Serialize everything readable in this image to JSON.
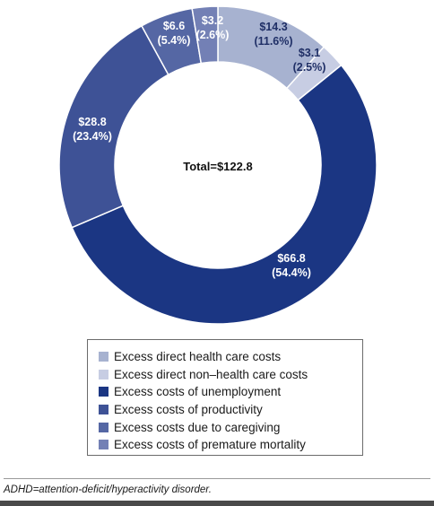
{
  "chart_data": {
    "type": "pie",
    "subtype": "donut",
    "center_label": "Total=$122.8",
    "slices": [
      {
        "label": "Excess direct health care costs",
        "value": 14.3,
        "percent": 11.6,
        "value_text": "$14.3",
        "percent_text": "(11.6%)",
        "color": "#a7b2d0",
        "text_color": "#1f2f66"
      },
      {
        "label": "Excess direct non–health care costs",
        "value": 3.1,
        "percent": 2.5,
        "value_text": "$3.1",
        "percent_text": "(2.5%)",
        "color": "#c7cde3",
        "text_color": "#1f2f66"
      },
      {
        "label": "Excess costs of unemployment",
        "value": 66.8,
        "percent": 54.4,
        "value_text": "$66.8",
        "percent_text": "(54.4%)",
        "color": "#1b3683",
        "text_color": "#ffffff"
      },
      {
        "label": "Excess costs of productivity",
        "value": 28.8,
        "percent": 23.4,
        "value_text": "$28.8",
        "percent_text": "(23.4%)",
        "color": "#3e5296",
        "text_color": "#ffffff"
      },
      {
        "label": "Excess costs due to caregiving",
        "value": 6.6,
        "percent": 5.4,
        "value_text": "$6.6",
        "percent_text": "(5.4%)",
        "color": "#5567a4",
        "text_color": "#ffffff"
      },
      {
        "label": "Excess costs of premature mortality",
        "value": 3.2,
        "percent": 2.6,
        "value_text": "$3.2",
        "percent_text": "(2.6%)",
        "color": "#7380b5",
        "text_color": "#ffffff"
      }
    ],
    "legend_position": "bottom"
  },
  "footnote": "ADHD=attention-deficit/hyperactivity disorder."
}
